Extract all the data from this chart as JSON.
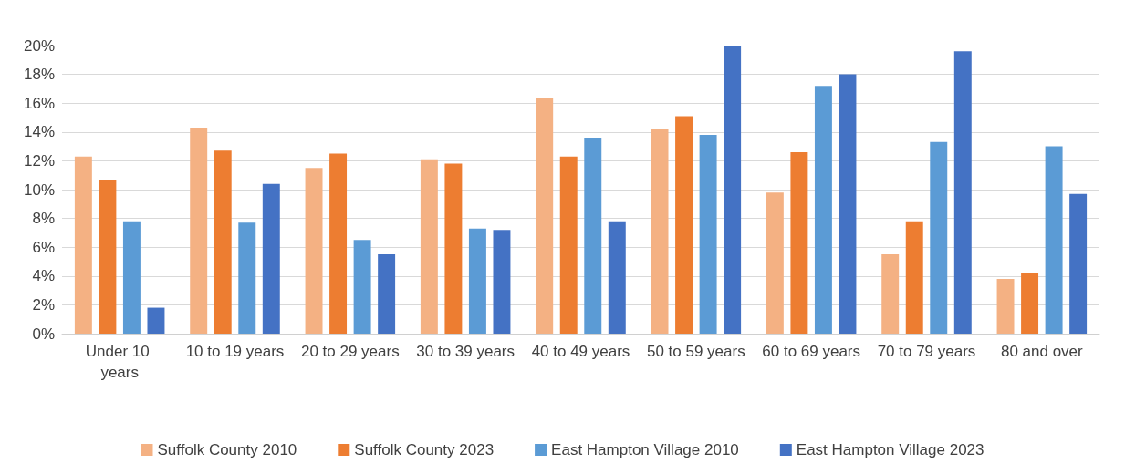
{
  "chart_data": {
    "type": "bar",
    "categories": [
      "Under 10 years",
      "10 to 19 years",
      "20 to 29 years",
      "30 to 39 years",
      "40 to 49 years",
      "50 to 59 years",
      "60 to 69 years",
      "70 to 79 years",
      "80 and over"
    ],
    "series": [
      {
        "name": "Suffolk County 2010",
        "color": "#f4b183",
        "values": [
          12.3,
          14.3,
          11.5,
          12.1,
          16.4,
          14.2,
          9.8,
          5.5,
          3.8
        ]
      },
      {
        "name": "Suffolk County 2023",
        "color": "#ed7d31",
        "values": [
          10.7,
          12.7,
          12.5,
          11.8,
          12.3,
          15.1,
          12.6,
          7.8,
          4.2
        ]
      },
      {
        "name": "East Hampton Village 2010",
        "color": "#5b9bd5",
        "values": [
          7.8,
          7.7,
          6.5,
          7.3,
          13.6,
          13.8,
          17.2,
          13.3,
          13.0
        ]
      },
      {
        "name": "East Hampton Village 2023",
        "color": "#4472c4",
        "values": [
          1.8,
          10.4,
          5.5,
          7.2,
          7.8,
          20.0,
          18.0,
          19.6,
          9.7
        ]
      }
    ],
    "ylim": [
      0,
      20
    ],
    "yticks": [
      {
        "value": 0,
        "label": "0%"
      },
      {
        "value": 2,
        "label": "2%"
      },
      {
        "value": 4,
        "label": "4%"
      },
      {
        "value": 6,
        "label": "6%"
      },
      {
        "value": 8,
        "label": "8%"
      },
      {
        "value": 10,
        "label": "10%"
      },
      {
        "value": 12,
        "label": "12%"
      },
      {
        "value": 14,
        "label": "14%"
      },
      {
        "value": 16,
        "label": "16%"
      },
      {
        "value": 18,
        "label": "18%"
      },
      {
        "value": 20,
        "label": "20%"
      }
    ],
    "grid": "y",
    "legend": "bottom"
  }
}
